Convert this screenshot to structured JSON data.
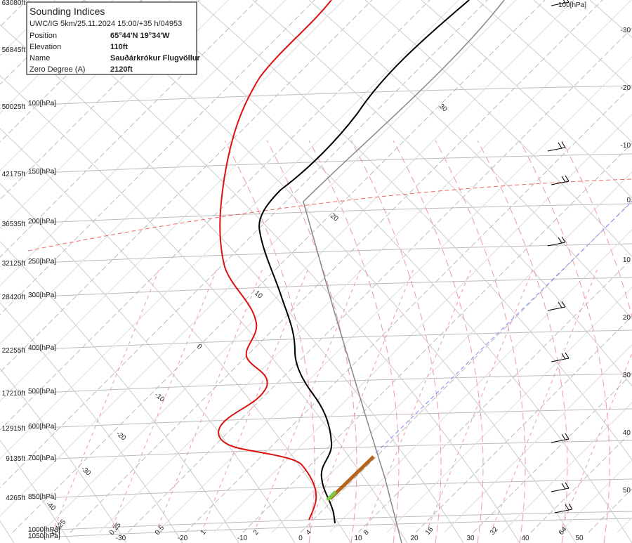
{
  "info": {
    "title": "Sounding Indices",
    "subtitle": "UWC/IG 5km/25.11.2024 15:00/+35 h/04953",
    "rows": [
      [
        "Position",
        "65°44'N 19°34'W"
      ],
      [
        "Elevation",
        "110ft"
      ],
      [
        "Name",
        "Sauðárkrókur Flugvöllur"
      ],
      [
        "Zero Degree (A)",
        "2120ft"
      ]
    ]
  },
  "altitudes": [
    "63080ft",
    "56845ft",
    "50025ft",
    "42175ft",
    "36535ft",
    "32125ft",
    "28420ft",
    "22255ft",
    "17210ft",
    "12915ft",
    "9135ft",
    "4265ft"
  ],
  "pressures": [
    "100[hPa]",
    "150[hPa]",
    "200[hPa]",
    "250[hPa]",
    "300[hPa]",
    "400[hPa]",
    "500[hPa]",
    "600[hPa]",
    "700[hPa]",
    "850[hPa]",
    "1000[hPa]",
    "1050[hPa]"
  ],
  "top_right_pressure": "100[hPa]",
  "right_temperatures": [
    "-30",
    "-20",
    "-10",
    "0",
    "10",
    "20",
    "30",
    "40",
    "50"
  ],
  "bottom_temperatures": [
    "-30",
    "-20",
    "-10",
    "0",
    "10",
    "20",
    "30",
    "40",
    "50"
  ],
  "mixing_ratios": [
    "0.125",
    "0.25",
    "0.5",
    "1",
    "2",
    "4",
    "8",
    "16",
    "32",
    "64"
  ],
  "adiabat_labels": [
    "30",
    "20",
    "10",
    "0",
    "-10",
    "-20",
    "-30",
    "-40"
  ]
}
